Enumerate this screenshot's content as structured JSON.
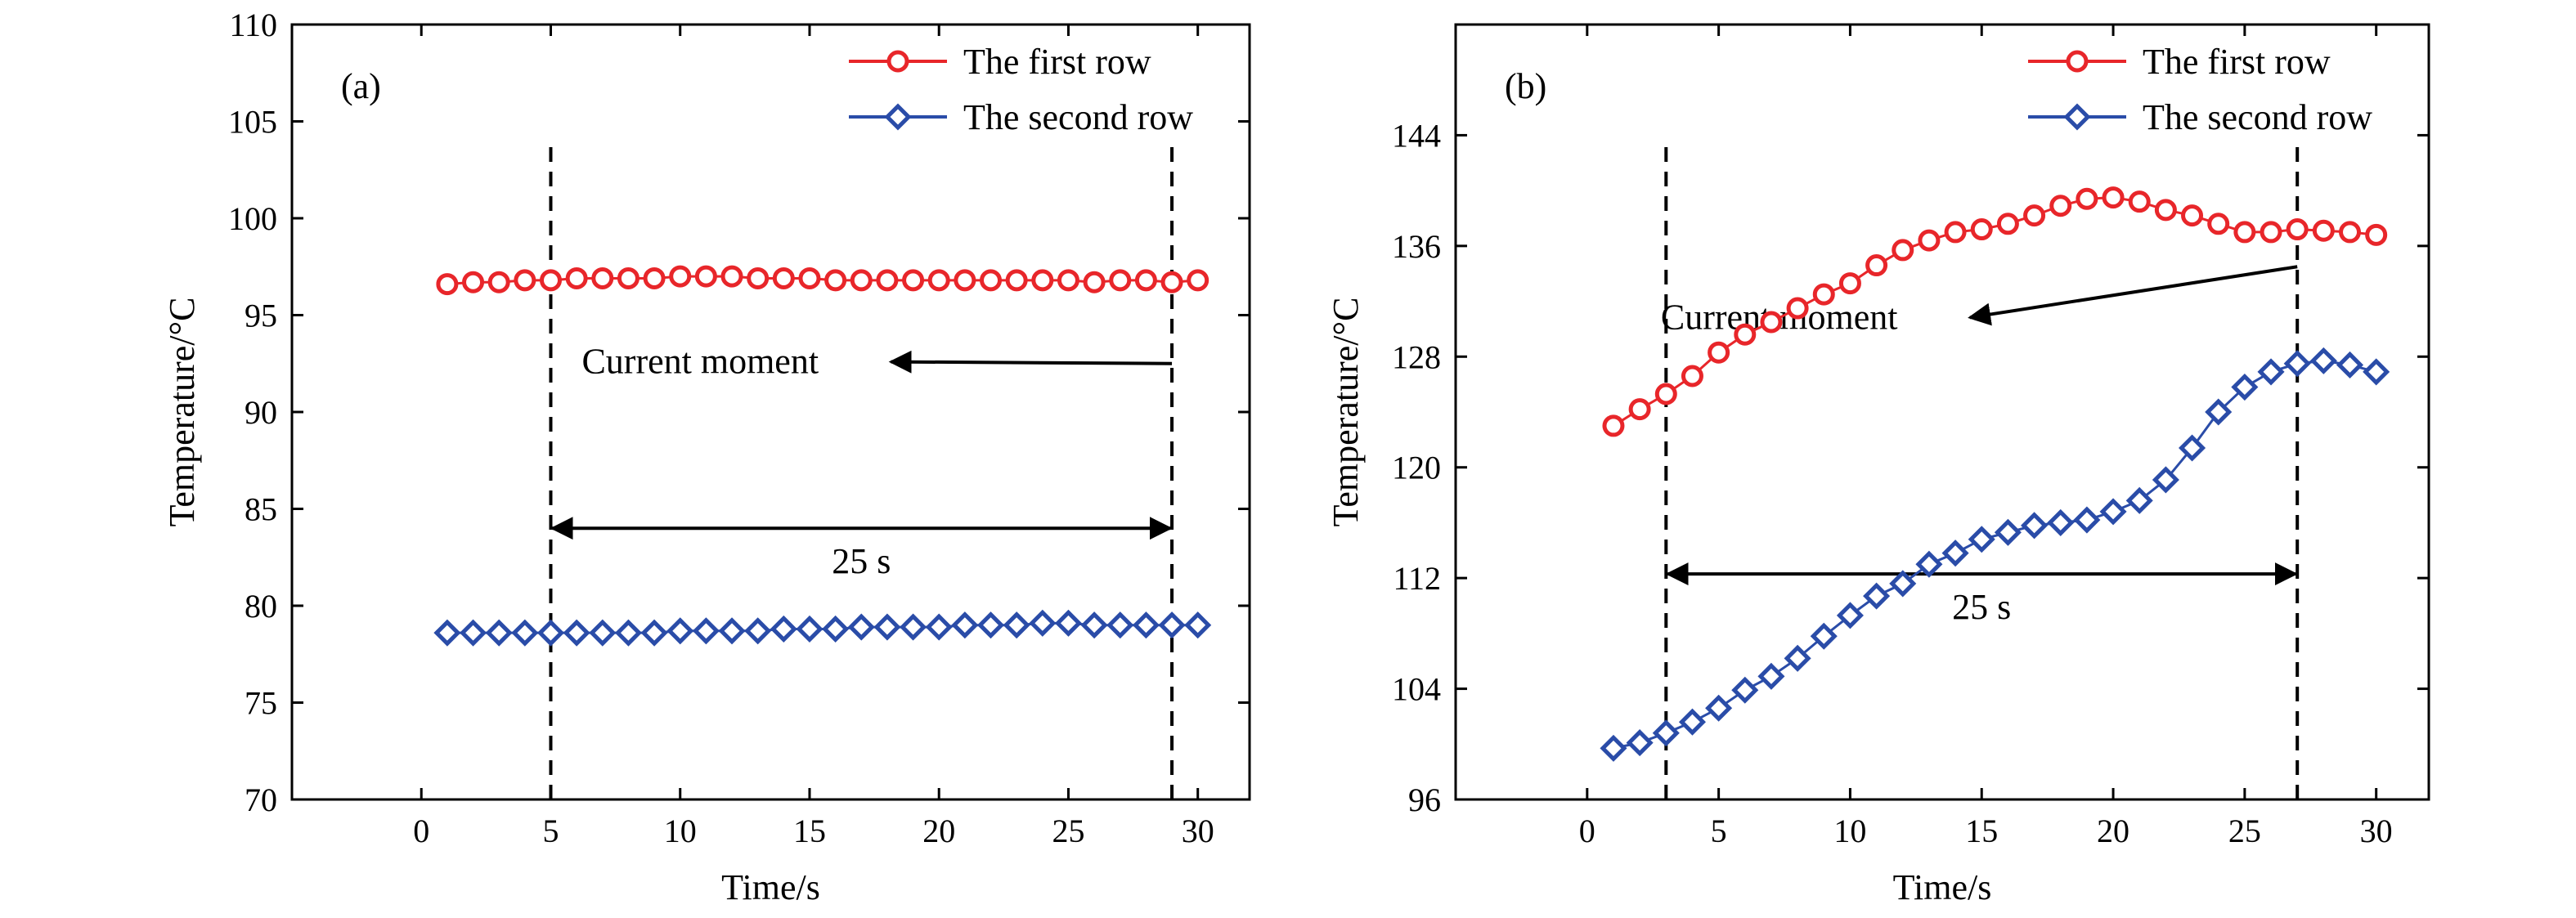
{
  "chart_data": [
    {
      "type": "line",
      "panel_label": "(a)",
      "xlabel": "Time/s",
      "ylabel": "Temperature/°C",
      "xlim": [
        -5,
        32
      ],
      "ylim": [
        70,
        110
      ],
      "xticks": [
        0,
        5,
        10,
        15,
        20,
        25,
        30
      ],
      "yticks": [
        70,
        75,
        80,
        85,
        90,
        95,
        100,
        105,
        110
      ],
      "x": [
        1,
        2,
        3,
        4,
        5,
        6,
        7,
        8,
        9,
        10,
        11,
        12,
        13,
        14,
        15,
        16,
        17,
        18,
        19,
        20,
        21,
        22,
        23,
        24,
        25,
        26,
        27,
        28,
        29,
        30
      ],
      "series": [
        {
          "name": "The first row",
          "color": "#e8262a",
          "marker": "circle",
          "values": [
            96.6,
            96.7,
            96.7,
            96.8,
            96.8,
            96.9,
            96.9,
            96.9,
            96.9,
            97.0,
            97.0,
            97.0,
            96.9,
            96.9,
            96.9,
            96.8,
            96.8,
            96.8,
            96.8,
            96.8,
            96.8,
            96.8,
            96.8,
            96.8,
            96.8,
            96.7,
            96.8,
            96.8,
            96.7,
            96.8
          ]
        },
        {
          "name": "The second row",
          "color": "#2a4ca8",
          "marker": "diamond",
          "values": [
            78.6,
            78.6,
            78.6,
            78.6,
            78.6,
            78.6,
            78.6,
            78.6,
            78.6,
            78.7,
            78.7,
            78.7,
            78.7,
            78.8,
            78.8,
            78.8,
            78.9,
            78.9,
            78.9,
            78.9,
            79.0,
            79.0,
            79.0,
            79.1,
            79.1,
            79.0,
            79.0,
            79.0,
            79.0,
            79.0
          ]
        }
      ],
      "markers_vertical": [
        5,
        29
      ],
      "span_label": "25 s",
      "span_arrow_y": 84,
      "annotation": {
        "text": "Current moment",
        "text_x": 6.2,
        "text_y": 92.0,
        "arrow_to": [
          29,
          92.5
        ]
      },
      "legend_position": "top-right",
      "grid": false
    },
    {
      "type": "line",
      "panel_label": "(b)",
      "xlabel": "Time/s",
      "ylabel": "Temperature/°C",
      "xlim": [
        -5,
        32
      ],
      "ylim": [
        96,
        152
      ],
      "xticks": [
        0,
        5,
        10,
        15,
        20,
        25,
        30
      ],
      "yticks": [
        96,
        104,
        112,
        120,
        128,
        136,
        144
      ],
      "x": [
        1,
        2,
        3,
        4,
        5,
        6,
        7,
        8,
        9,
        10,
        11,
        12,
        13,
        14,
        15,
        16,
        17,
        18,
        19,
        20,
        21,
        22,
        23,
        24,
        25,
        26,
        27,
        28,
        29,
        30
      ],
      "series": [
        {
          "name": "The first row",
          "color": "#e8262a",
          "marker": "circle",
          "values": [
            123.0,
            124.2,
            125.3,
            126.6,
            128.3,
            129.6,
            130.5,
            131.5,
            132.5,
            133.3,
            134.6,
            135.7,
            136.4,
            137.0,
            137.2,
            137.6,
            138.2,
            138.9,
            139.4,
            139.5,
            139.2,
            138.6,
            138.2,
            137.6,
            137.0,
            137.0,
            137.2,
            137.1,
            137.0,
            136.8
          ]
        },
        {
          "name": "The second row",
          "color": "#2a4ca8",
          "marker": "diamond",
          "values": [
            99.7,
            100.1,
            100.8,
            101.6,
            102.6,
            103.9,
            104.9,
            106.2,
            107.8,
            109.3,
            110.7,
            111.6,
            113.0,
            113.8,
            114.8,
            115.3,
            115.8,
            116.0,
            116.2,
            116.8,
            117.6,
            119.1,
            121.4,
            124.0,
            125.8,
            126.9,
            127.5,
            127.7,
            127.4,
            126.9
          ]
        }
      ],
      "markers_vertical": [
        3,
        27
      ],
      "span_label": "25 s",
      "span_arrow_y": 112.3,
      "annotation": {
        "text": "Current moment",
        "text_x": 2.8,
        "text_y": 130.0,
        "arrow_to": [
          27,
          134.5
        ]
      },
      "legend_position": "top-right",
      "grid": false
    }
  ]
}
